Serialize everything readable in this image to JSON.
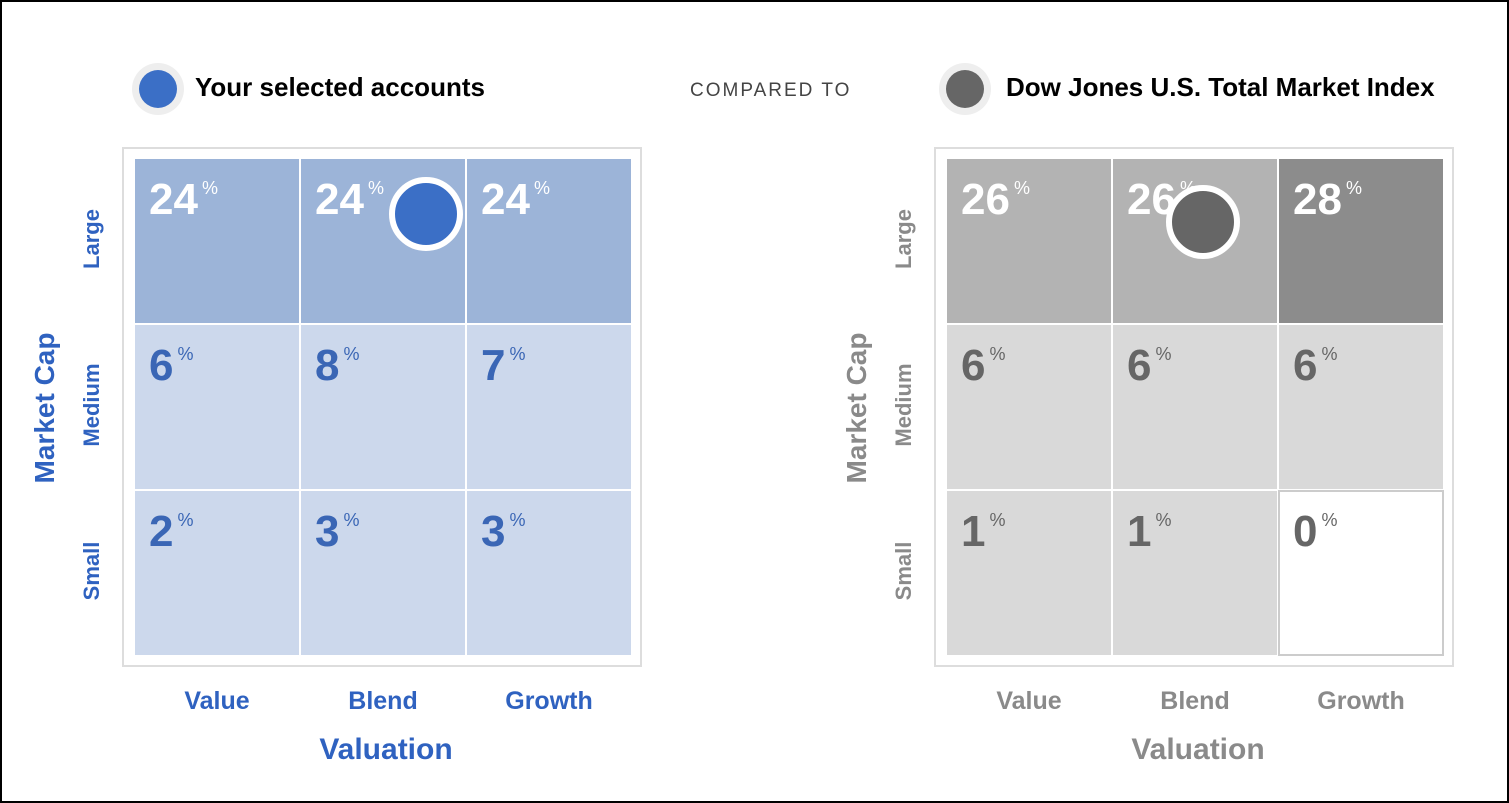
{
  "legend": {
    "selected": "Your selected accounts",
    "compared": "COMPARED TO",
    "index": "Dow Jones U.S. Total Market Index"
  },
  "grids": [
    {
      "y_axis": "Market Cap",
      "rows": [
        "Large",
        "Medium",
        "Small"
      ],
      "columns": [
        "Value",
        "Blend",
        "Growth"
      ],
      "x_axis": "Valuation",
      "percent_sign": "%",
      "cells": [
        [
          24,
          24,
          24
        ],
        [
          6,
          8,
          7
        ],
        [
          2,
          3,
          3
        ]
      ]
    },
    {
      "y_axis": "Market Cap",
      "rows": [
        "Large",
        "Medium",
        "Small"
      ],
      "columns": [
        "Value",
        "Blend",
        "Growth"
      ],
      "x_axis": "Valuation",
      "percent_sign": "%",
      "cells": [
        [
          26,
          26,
          28
        ],
        [
          6,
          6,
          6
        ],
        [
          1,
          1,
          0
        ]
      ]
    }
  ]
}
